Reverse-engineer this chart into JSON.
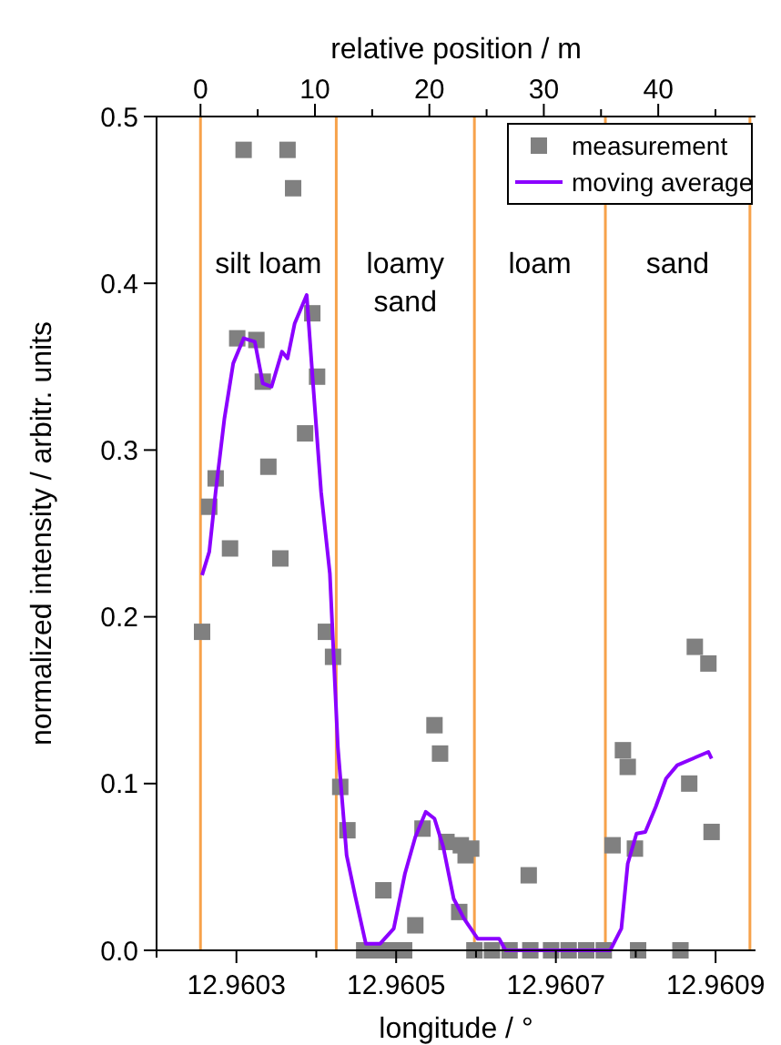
{
  "chart_data": {
    "type": "scatter",
    "xlabel": "longitude / °",
    "ylabel": "normalized intensity / arbitr. units",
    "x2label": "relative position / m",
    "xlim": [
      12.9602,
      12.96095
    ],
    "xticks": [
      {
        "value": 12.9602,
        "label": null
      },
      12.9603,
      {
        "value": 12.9604,
        "label": null
      },
      12.9605,
      {
        "value": 12.9606,
        "label": null
      },
      12.9607,
      {
        "value": 12.9608,
        "label": null
      },
      12.9609
    ],
    "x2lim": [
      -3.84,
      48.5
    ],
    "x2ticks": [
      0,
      {
        "value": 5,
        "label": null
      },
      10,
      {
        "value": 15,
        "label": null
      },
      20,
      {
        "value": 25,
        "label": null
      },
      30,
      {
        "value": 35,
        "label": null
      },
      40,
      {
        "value": 45,
        "label": null
      }
    ],
    "ylim": [
      0,
      0.5
    ],
    "yticks": [
      {
        "value": 0,
        "label": "0.0"
      },
      0.1,
      0.2,
      0.3,
      0.4,
      0.5
    ],
    "grid": false,
    "legend": "top right",
    "series": [
      {
        "name": "measurement",
        "marker": "square",
        "color": "#808080",
        "x": [
          12.960257,
          12.960266,
          12.960274,
          12.960292,
          12.960301,
          12.960309,
          12.960325,
          12.960333,
          12.96034,
          12.960355,
          12.960364,
          12.960371,
          12.960386,
          12.960395,
          12.960401,
          12.960412,
          12.960421,
          12.96043,
          12.960439,
          12.96046,
          12.960476,
          12.960484,
          12.960495,
          12.96051,
          12.960524,
          12.960533,
          12.960548,
          12.960555,
          12.960563,
          12.960579,
          12.960581,
          12.960587,
          12.960594,
          12.960598,
          12.96062,
          12.960642,
          12.960666,
          12.960668,
          12.960694,
          12.960716,
          12.960738,
          12.96076,
          12.960771,
          12.960784,
          12.96079,
          12.960799,
          12.960803,
          12.960856,
          12.960867,
          12.960874,
          12.960891,
          12.960895
        ],
        "values": [
          0.191,
          0.266,
          0.283,
          0.241,
          0.367,
          0.48,
          0.366,
          0.341,
          0.29,
          0.235,
          0.48,
          0.457,
          0.31,
          0.382,
          0.344,
          0.191,
          0.176,
          0.098,
          0.072,
          0,
          0,
          0.036,
          0,
          0,
          0.015,
          0.073,
          0.135,
          0.118,
          0.065,
          0.023,
          0.063,
          0.057,
          0.061,
          0,
          0,
          0,
          0.045,
          0,
          0,
          0,
          0,
          0,
          0.063,
          0.12,
          0.11,
          0.061,
          0,
          0,
          0.1,
          0.182,
          0.172,
          0.071
        ]
      },
      {
        "name": "moving average",
        "type": "line",
        "line_style": "solid",
        "color": "#8b00ff",
        "x": [
          12.960257,
          12.960266,
          12.960274,
          12.960285,
          12.960296,
          12.960309,
          12.960323,
          12.960333,
          12.960344,
          12.960357,
          12.960364,
          12.960373,
          12.960388,
          12.960395,
          12.960406,
          12.960417,
          12.960427,
          12.960438,
          12.960449,
          12.960462,
          12.96048,
          12.960497,
          12.960511,
          12.960524,
          12.960537,
          12.960548,
          12.960559,
          12.960572,
          12.960585,
          12.960602,
          12.960629,
          12.960637,
          12.960668,
          12.960712,
          12.960768,
          12.960782,
          12.96079,
          12.960801,
          12.960812,
          12.960825,
          12.960838,
          12.960852,
          12.960891,
          12.960895
        ],
        "values": [
          0.225,
          0.239,
          0.275,
          0.319,
          0.352,
          0.367,
          0.365,
          0.34,
          0.338,
          0.359,
          0.355,
          0.376,
          0.393,
          0.346,
          0.275,
          0.226,
          0.122,
          0.057,
          0.032,
          0.004,
          0.004,
          0.013,
          0.046,
          0.068,
          0.083,
          0.079,
          0.062,
          0.031,
          0.019,
          0.007,
          0.007,
          0,
          0,
          0,
          0,
          0.013,
          0.052,
          0.07,
          0.071,
          0.086,
          0.103,
          0.111,
          0.119,
          0.115
        ]
      }
    ],
    "ref_lines": [
      {
        "axis": "x",
        "value": 12.960255,
        "color": "#f7a24b"
      },
      {
        "axis": "x",
        "value": 12.960425,
        "color": "#f7a24b"
      },
      {
        "axis": "x",
        "value": 12.960598,
        "color": "#f7a24b"
      },
      {
        "axis": "x",
        "value": 12.960762,
        "color": "#f7a24b"
      },
      {
        "axis": "x",
        "value": 12.960943,
        "color": "#f7a24b"
      }
    ],
    "annotations": [
      "silt loam",
      "loamy\nsand",
      "loam",
      "sand"
    ]
  }
}
